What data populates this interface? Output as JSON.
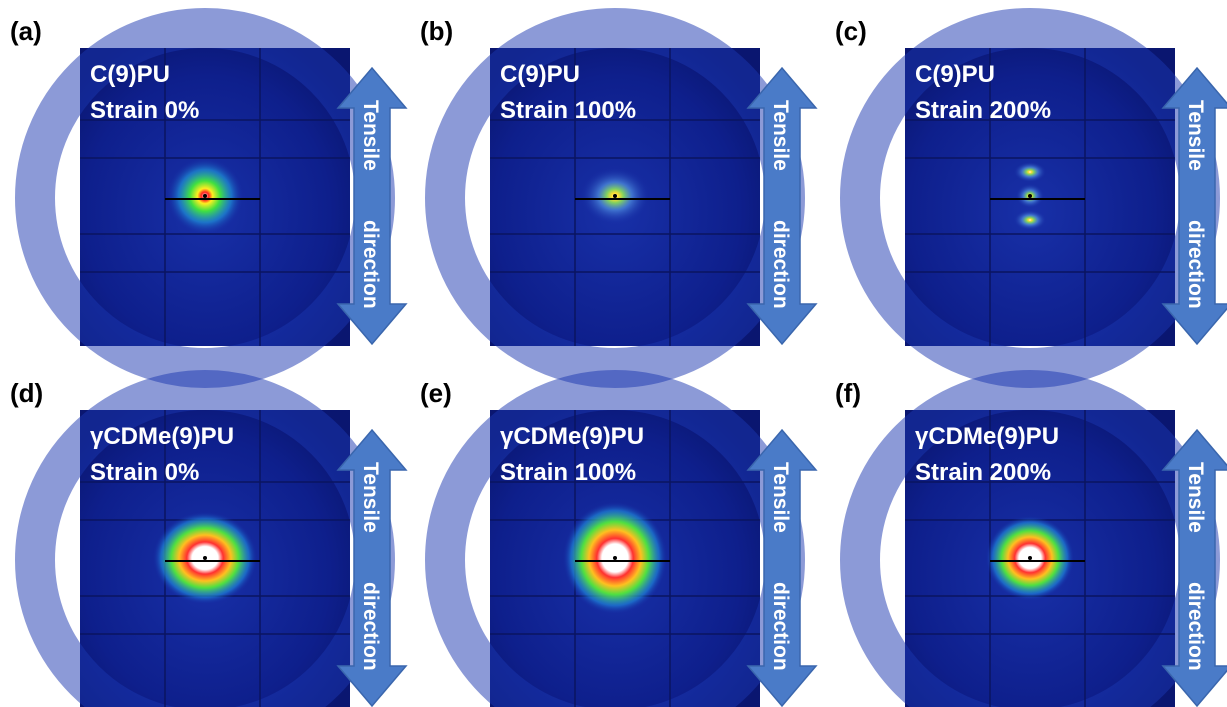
{
  "panels": [
    {
      "label": "(a)",
      "sample": "C(9)PU",
      "strain": "Strain 0%"
    },
    {
      "label": "(b)",
      "sample": "C(9)PU",
      "strain": "Strain 100%"
    },
    {
      "label": "(c)",
      "sample": "C(9)PU",
      "strain": "Strain 200%"
    },
    {
      "label": "(d)",
      "sample": "γCDMe(9)PU",
      "strain": "Strain 0%"
    },
    {
      "label": "(e)",
      "sample": "γCDMe(9)PU",
      "strain": "Strain 100%"
    },
    {
      "label": "(f)",
      "sample": "γCDMe(9)PU",
      "strain": "Strain 200%"
    }
  ],
  "arrow_label": [
    "Tensile",
    "direction"
  ]
}
